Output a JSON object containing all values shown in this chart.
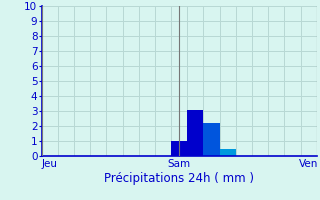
{
  "title": "",
  "xlabel": "Précipitations 24h ( mm )",
  "ylabel": "",
  "ylim": [
    0,
    10
  ],
  "yticks": [
    0,
    1,
    2,
    3,
    4,
    5,
    6,
    7,
    8,
    9,
    10
  ],
  "background_color": "#d8f5f0",
  "bar_data": [
    {
      "x": 0,
      "height": 0,
      "color": "#0000cc"
    },
    {
      "x": 1,
      "height": 0,
      "color": "#0000cc"
    },
    {
      "x": 2,
      "height": 0,
      "color": "#0000cc"
    },
    {
      "x": 3,
      "height": 0,
      "color": "#0000cc"
    },
    {
      "x": 4,
      "height": 0,
      "color": "#0000cc"
    },
    {
      "x": 5,
      "height": 0,
      "color": "#0000cc"
    },
    {
      "x": 6,
      "height": 0,
      "color": "#0000cc"
    },
    {
      "x": 7,
      "height": 0,
      "color": "#0000cc"
    },
    {
      "x": 8,
      "height": 1.0,
      "color": "#0000cc"
    },
    {
      "x": 9,
      "height": 3.1,
      "color": "#0000cc"
    },
    {
      "x": 10,
      "height": 2.2,
      "color": "#0055dd"
    },
    {
      "x": 11,
      "height": 0.5,
      "color": "#0099dd"
    },
    {
      "x": 12,
      "height": 0,
      "color": "#0000cc"
    },
    {
      "x": 13,
      "height": 0,
      "color": "#0000cc"
    },
    {
      "x": 14,
      "height": 0,
      "color": "#0000cc"
    },
    {
      "x": 15,
      "height": 0,
      "color": "#0000cc"
    },
    {
      "x": 16,
      "height": 0,
      "color": "#0000cc"
    }
  ],
  "n_bars": 17,
  "xtick_positions": [
    0.5,
    8.5,
    16.5
  ],
  "xtick_labels": [
    "Jeu",
    "Sam",
    "Ven"
  ],
  "vline_positions": [
    0,
    8.5,
    17
  ],
  "vline_color": "#777777",
  "grid_color": "#b8d8d4",
  "axis_color": "#0000cc",
  "tick_color": "#0000cc",
  "xlabel_color": "#0000cc",
  "xlabel_fontsize": 8.5,
  "tick_fontsize": 7.5
}
